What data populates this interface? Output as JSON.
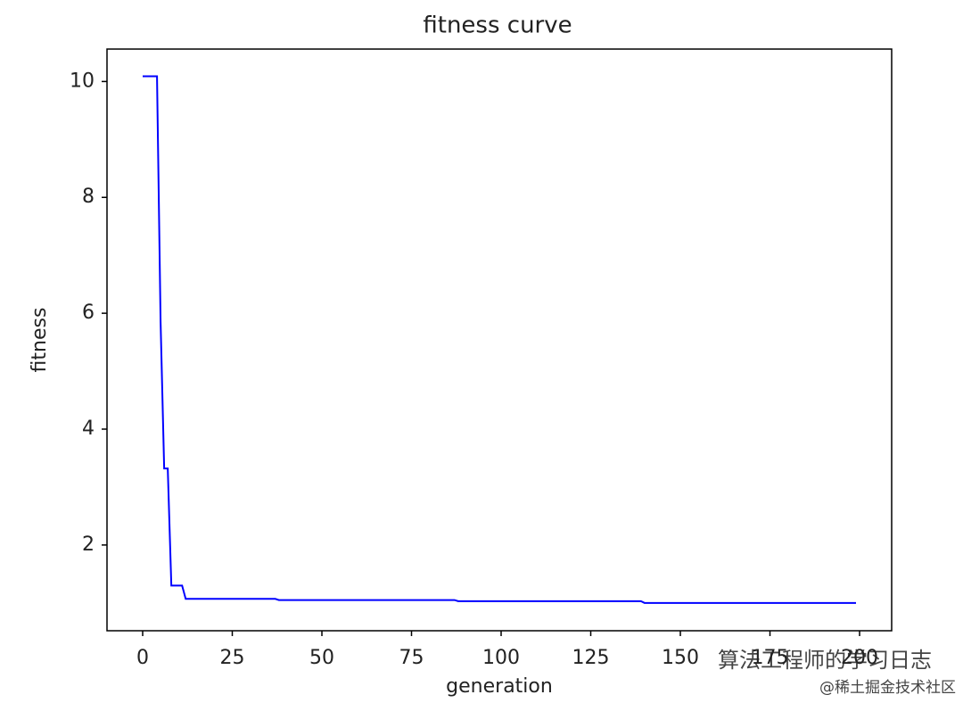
{
  "chart_data": {
    "type": "line",
    "title": "fitness curve",
    "x_label": "generation",
    "y_label": "fitness",
    "x": [
      0,
      1,
      2,
      3,
      4,
      5,
      6,
      7,
      8,
      9,
      10,
      11,
      12,
      13,
      14,
      15,
      16,
      17,
      18,
      19,
      20,
      21,
      22,
      23,
      24,
      25,
      26,
      27,
      28,
      29,
      30,
      31,
      32,
      33,
      34,
      35,
      36,
      37,
      38,
      39,
      40,
      41,
      42,
      43,
      44,
      45,
      46,
      47,
      48,
      49,
      50,
      51,
      52,
      53,
      54,
      55,
      56,
      57,
      58,
      59,
      60,
      61,
      62,
      63,
      64,
      65,
      66,
      67,
      68,
      69,
      70,
      71,
      72,
      73,
      74,
      75,
      76,
      77,
      78,
      79,
      80,
      81,
      82,
      83,
      84,
      85,
      86,
      87,
      88,
      89,
      90,
      91,
      92,
      93,
      94,
      95,
      96,
      97,
      98,
      99,
      100,
      101,
      102,
      103,
      104,
      105,
      106,
      107,
      108,
      109,
      110,
      111,
      112,
      113,
      114,
      115,
      116,
      117,
      118,
      119,
      120,
      121,
      122,
      123,
      124,
      125,
      126,
      127,
      128,
      129,
      130,
      131,
      132,
      133,
      134,
      135,
      136,
      137,
      138,
      139,
      140,
      141,
      142,
      143,
      144,
      145,
      146,
      147,
      148,
      149,
      150,
      151,
      152,
      153,
      154,
      155,
      156,
      157,
      158,
      159,
      160,
      161,
      162,
      163,
      164,
      165,
      166,
      167,
      168,
      169,
      170,
      171,
      172,
      173,
      174,
      175,
      176,
      177,
      178,
      179,
      180,
      181,
      182,
      183,
      184,
      185,
      186,
      187,
      188,
      189,
      190,
      191,
      192,
      193,
      194,
      195,
      196,
      197,
      198,
      199
    ],
    "series": [
      {
        "color": "#0000ff",
        "values": [
          10.09,
          10.09,
          10.09,
          10.09,
          10.09,
          5.85,
          3.32,
          3.32,
          1.3,
          1.3,
          1.3,
          1.3,
          1.07,
          1.07,
          1.07,
          1.07,
          1.07,
          1.07,
          1.07,
          1.07,
          1.07,
          1.07,
          1.07,
          1.07,
          1.07,
          1.07,
          1.07,
          1.07,
          1.07,
          1.07,
          1.07,
          1.07,
          1.07,
          1.07,
          1.07,
          1.07,
          1.07,
          1.07,
          1.05,
          1.05,
          1.05,
          1.05,
          1.05,
          1.05,
          1.05,
          1.05,
          1.05,
          1.05,
          1.05,
          1.05,
          1.05,
          1.05,
          1.05,
          1.05,
          1.05,
          1.05,
          1.05,
          1.05,
          1.05,
          1.05,
          1.05,
          1.05,
          1.05,
          1.05,
          1.05,
          1.05,
          1.05,
          1.05,
          1.05,
          1.05,
          1.05,
          1.05,
          1.05,
          1.05,
          1.05,
          1.05,
          1.05,
          1.05,
          1.05,
          1.05,
          1.05,
          1.05,
          1.05,
          1.05,
          1.05,
          1.05,
          1.05,
          1.05,
          1.03,
          1.03,
          1.03,
          1.03,
          1.03,
          1.03,
          1.03,
          1.03,
          1.03,
          1.03,
          1.03,
          1.03,
          1.03,
          1.03,
          1.03,
          1.03,
          1.03,
          1.03,
          1.03,
          1.03,
          1.03,
          1.03,
          1.03,
          1.03,
          1.03,
          1.03,
          1.03,
          1.03,
          1.03,
          1.03,
          1.03,
          1.03,
          1.03,
          1.03,
          1.03,
          1.03,
          1.03,
          1.03,
          1.03,
          1.03,
          1.03,
          1.03,
          1.03,
          1.03,
          1.03,
          1.03,
          1.03,
          1.03,
          1.03,
          1.03,
          1.03,
          1.03,
          1,
          1,
          1,
          1,
          1,
          1,
          1,
          1,
          1,
          1,
          1,
          1,
          1,
          1,
          1,
          1,
          1,
          1,
          1,
          1,
          1,
          1,
          1,
          1,
          1,
          1,
          1,
          1,
          1,
          1,
          1,
          1,
          1,
          1,
          1,
          1,
          1,
          1,
          1,
          1,
          1,
          1,
          1,
          1,
          1,
          1,
          1,
          1,
          1,
          1,
          1,
          1,
          1,
          1,
          1,
          1,
          1,
          1,
          1,
          1
        ]
      }
    ],
    "xlim": [
      -9.95,
      208.95
    ],
    "ylim": [
      0.52,
      10.56
    ],
    "xticks": [
      0,
      25,
      50,
      75,
      100,
      125,
      150,
      175,
      200
    ],
    "yticks": [
      2,
      4,
      6,
      8,
      10
    ],
    "grid": false
  },
  "watermarks": [
    "算法工程师的学习日志",
    "@稀土掘金技术社区"
  ]
}
